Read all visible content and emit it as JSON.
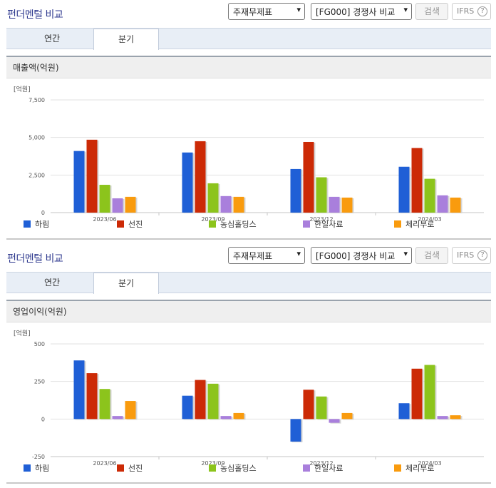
{
  "panels": [
    {
      "title": "펀더멘털 비교",
      "select_report": "주재무제표",
      "select_compare": "[FG000] 경쟁사 비교",
      "search_label": "검색",
      "ifrs_label": "IFRS",
      "help_label": "?",
      "tabs": [
        {
          "label": "연간"
        },
        {
          "label": "분기"
        }
      ],
      "active_tab": 1,
      "chart_title": "매출액(억원)"
    },
    {
      "title": "펀더멘털 비교",
      "select_report": "주재무제표",
      "select_compare": "[FG000] 경쟁사 비교",
      "search_label": "검색",
      "ifrs_label": "IFRS",
      "help_label": "?",
      "tabs": [
        {
          "label": "연간"
        },
        {
          "label": "분기"
        }
      ],
      "active_tab": 1,
      "chart_title": "영업이익(억원)"
    }
  ],
  "chart_data": [
    {
      "type": "bar",
      "title": "매출액(억원)",
      "unit_label": "[억원]",
      "categories": [
        "2023/06",
        "2023/09",
        "2023/12",
        "2024/03"
      ],
      "ylim": [
        0,
        7500
      ],
      "yticks": [
        0,
        2500,
        5000,
        7500
      ],
      "ytick_labels": [
        "0",
        "2,500",
        "5,000",
        "7,500"
      ],
      "series": [
        {
          "name": "하림",
          "color": "#1f5fd6",
          "values": [
            4100,
            4000,
            2900,
            3050
          ]
        },
        {
          "name": "선진",
          "color": "#cc2a06",
          "values": [
            4850,
            4750,
            4700,
            4300
          ]
        },
        {
          "name": "농심홀딩스",
          "color": "#8cc41c",
          "values": [
            1850,
            1950,
            2350,
            2250
          ]
        },
        {
          "name": "한일사료",
          "color": "#a97fdc",
          "values": [
            950,
            1100,
            1050,
            1150
          ]
        },
        {
          "name": "체리부로",
          "color": "#f99b0e",
          "values": [
            1050,
            1050,
            1000,
            1000
          ]
        }
      ],
      "legend": "bottom",
      "grid": true
    },
    {
      "type": "bar",
      "title": "영업이익(억원)",
      "unit_label": "[억원]",
      "categories": [
        "2023/06",
        "2023/09",
        "2023/12",
        "2024/03"
      ],
      "ylim": [
        -250,
        500
      ],
      "yticks": [
        -250,
        0,
        250,
        500
      ],
      "ytick_labels": [
        "-250",
        "0",
        "250",
        "500"
      ],
      "series": [
        {
          "name": "하림",
          "color": "#1f5fd6",
          "values": [
            390,
            155,
            -150,
            105
          ]
        },
        {
          "name": "선진",
          "color": "#cc2a06",
          "values": [
            305,
            260,
            195,
            335
          ]
        },
        {
          "name": "농심홀딩스",
          "color": "#8cc41c",
          "values": [
            200,
            235,
            150,
            360
          ]
        },
        {
          "name": "한일사료",
          "color": "#a97fdc",
          "values": [
            20,
            20,
            -25,
            20
          ]
        },
        {
          "name": "체리부로",
          "color": "#f99b0e",
          "values": [
            120,
            40,
            40,
            25
          ]
        }
      ],
      "legend": "bottom",
      "grid": true
    }
  ]
}
